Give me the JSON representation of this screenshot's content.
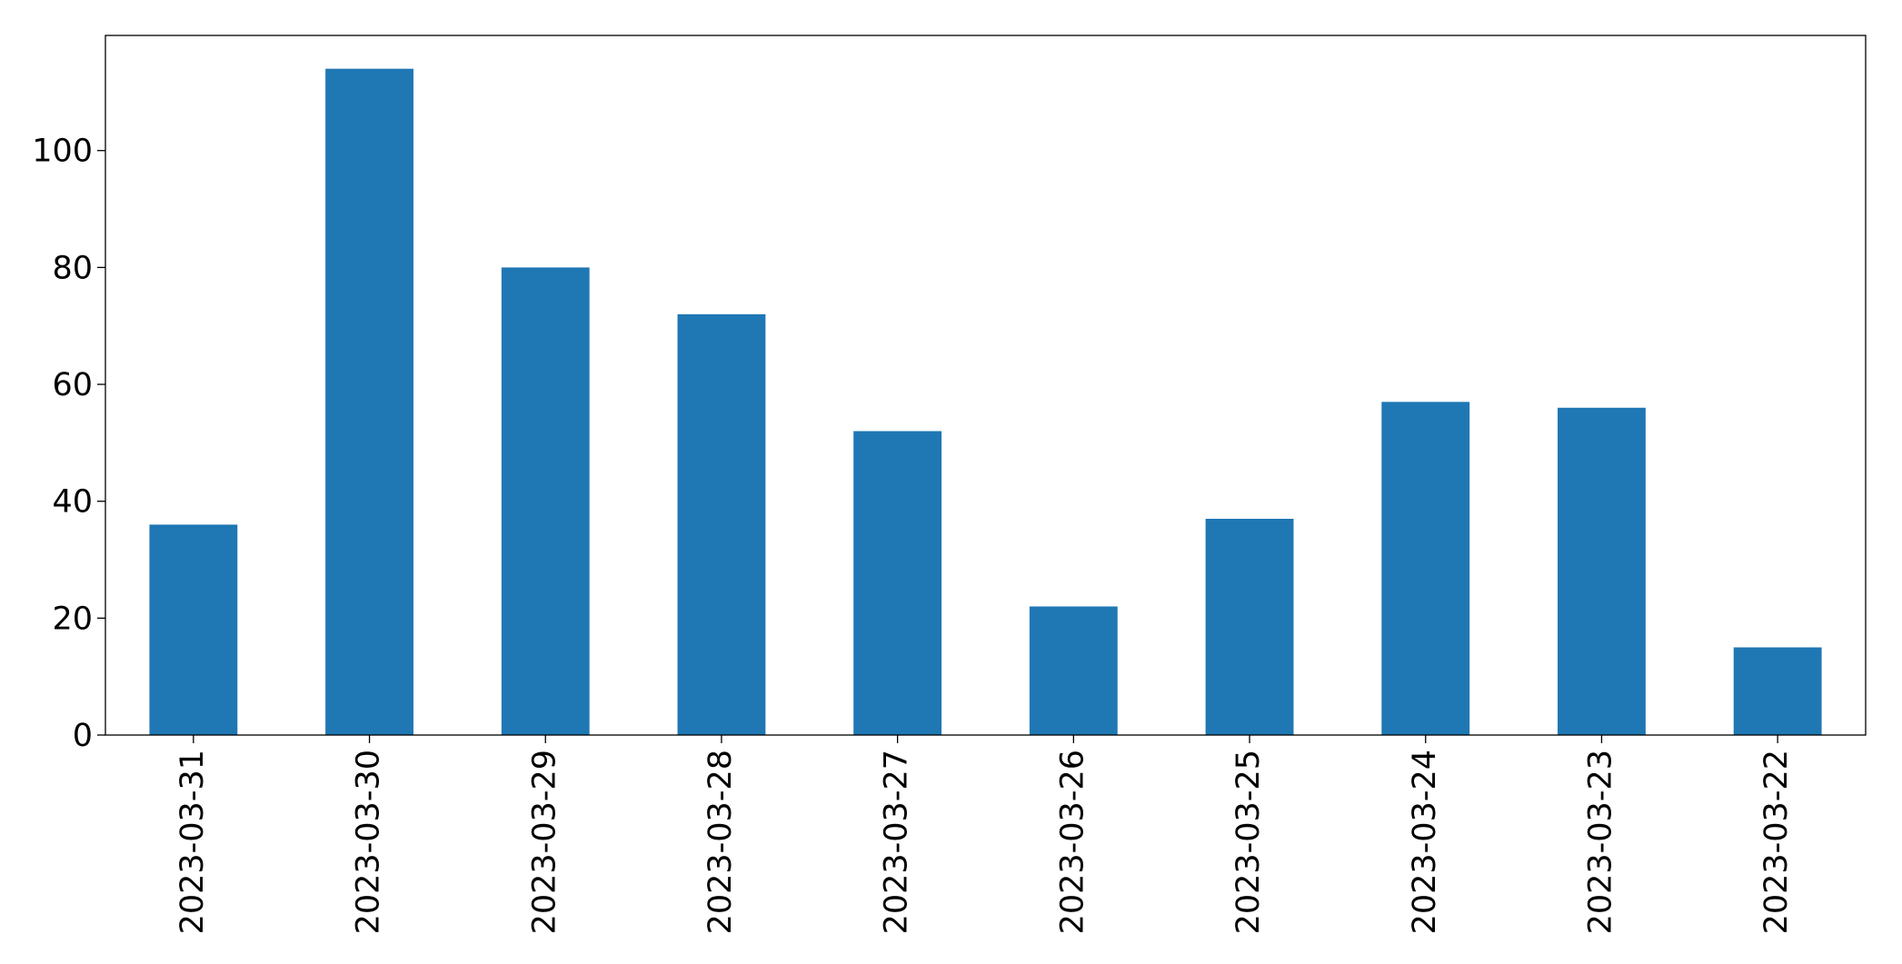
{
  "chart_data": {
    "type": "bar",
    "categories": [
      "2023-03-31",
      "2023-03-30",
      "2023-03-29",
      "2023-03-28",
      "2023-03-27",
      "2023-03-26",
      "2023-03-25",
      "2023-03-24",
      "2023-03-23",
      "2023-03-22"
    ],
    "values": [
      36,
      114,
      80,
      72,
      52,
      22,
      37,
      57,
      56,
      15
    ],
    "color": "#1f77b4",
    "ylim": [
      0,
      119.7
    ],
    "yticks": [
      0,
      20,
      40,
      60,
      80,
      100
    ],
    "grid": false
  }
}
